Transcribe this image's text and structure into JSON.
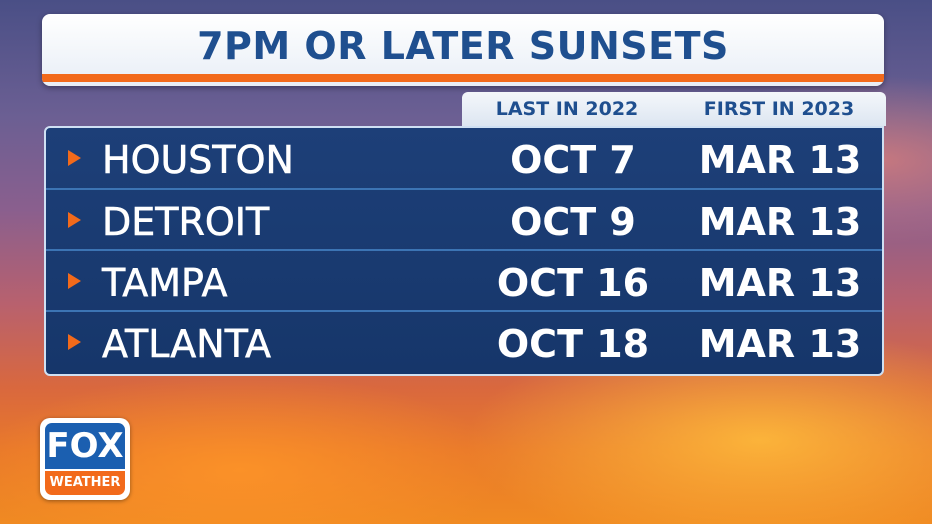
{
  "title": "7PM OR LATER SUNSETS",
  "table": {
    "columns": [
      "LAST IN 2022",
      "FIRST IN 2023"
    ],
    "rows": [
      [
        "HOUSTON",
        "OCT 7",
        "MAR 13"
      ],
      [
        "DETROIT",
        "OCT 9",
        "MAR 13"
      ],
      [
        "TAMPA",
        "OCT 16",
        "MAR 13"
      ],
      [
        "ATLANTA",
        "OCT 18",
        "MAR 13"
      ]
    ]
  },
  "logo": {
    "brand": "FOX",
    "subtitle": "WEATHER"
  }
}
